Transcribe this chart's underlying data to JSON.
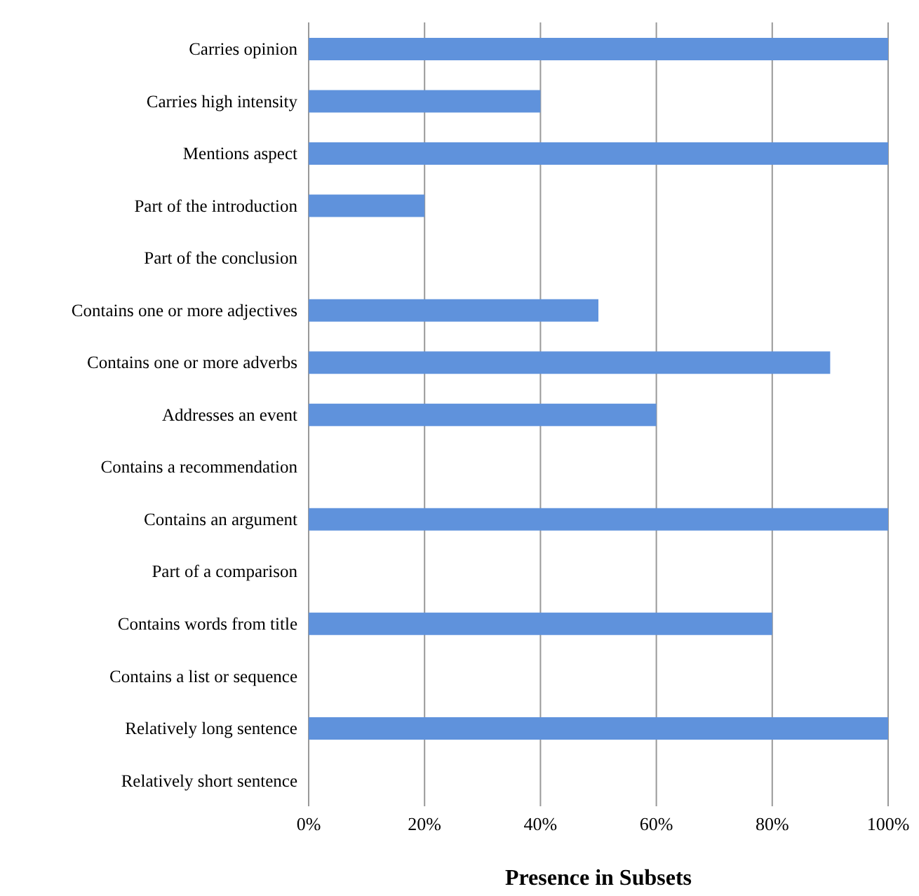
{
  "chart_data": {
    "type": "bar",
    "orientation": "horizontal",
    "xlabel": "Presence in Subsets",
    "categories": [
      "Carries opinion",
      "Carries high intensity",
      "Mentions aspect",
      "Part of the introduction",
      "Part of the conclusion",
      "Contains one or more adjectives",
      "Contains one or more adverbs",
      "Addresses an event ",
      "Contains a recommendation",
      "Contains an argument",
      "Part of a comparison",
      "Contains words from title",
      "Contains a list or sequence",
      "Relatively long sentence",
      "Relatively short sentence"
    ],
    "values": [
      100,
      40,
      100,
      20,
      0,
      50,
      90,
      60,
      0,
      100,
      0,
      80,
      0,
      100,
      0
    ],
    "color": "#5f92dc",
    "xlim": [
      0,
      100
    ],
    "xticks": [
      {
        "value": 0,
        "label": "0%"
      },
      {
        "value": 20,
        "label": "20%"
      },
      {
        "value": 40,
        "label": "40%"
      },
      {
        "value": 60,
        "label": "60%"
      },
      {
        "value": 80,
        "label": "80%"
      },
      {
        "value": 100,
        "label": "100%"
      }
    ],
    "grid": "x"
  }
}
